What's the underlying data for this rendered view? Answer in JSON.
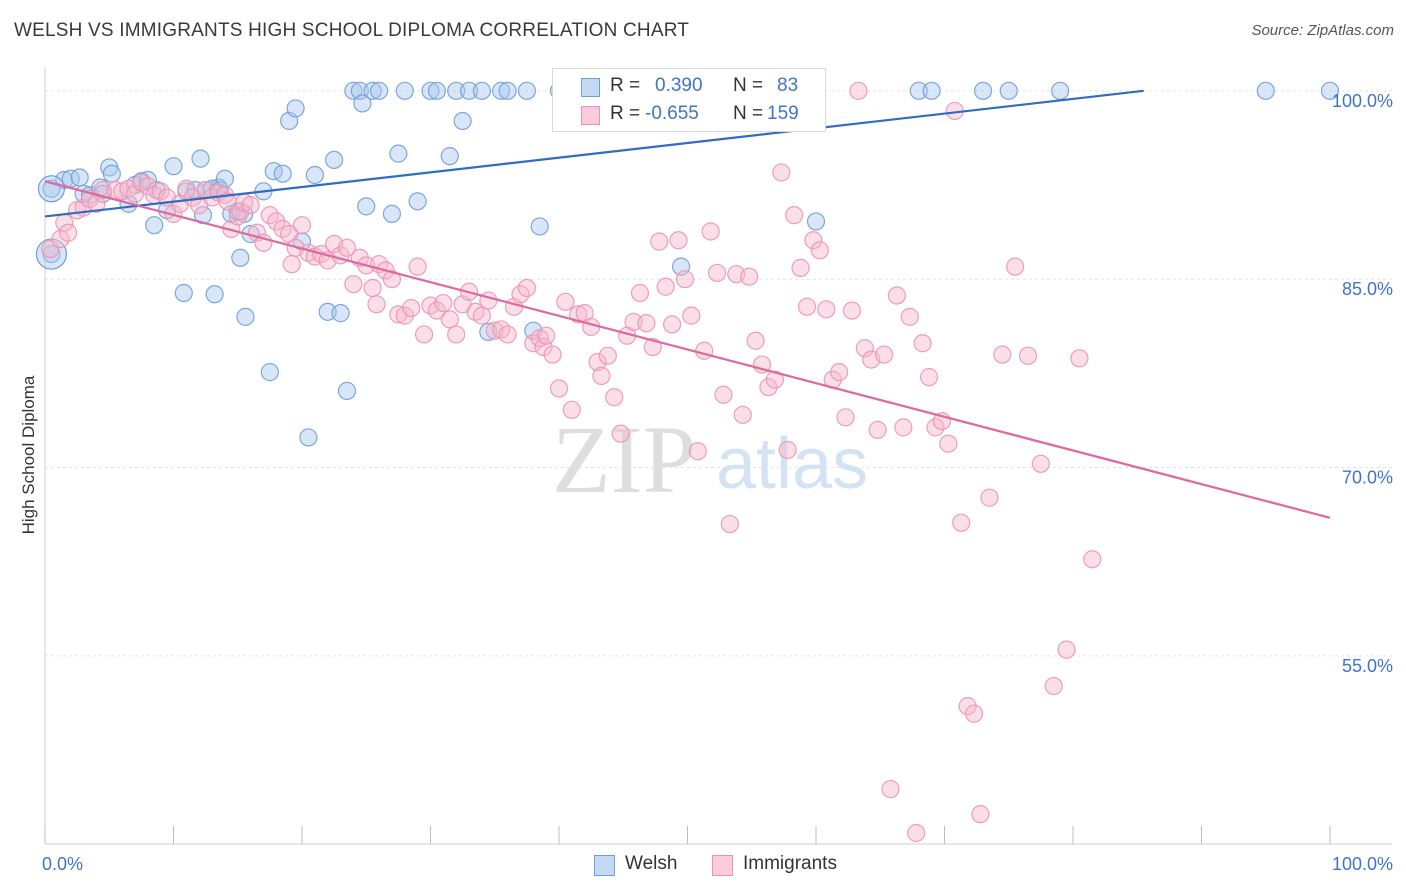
{
  "header": {
    "title": "WELSH VS IMMIGRANTS HIGH SCHOOL DIPLOMA CORRELATION CHART",
    "source": "Source: ZipAtlas.com"
  },
  "watermark": {
    "zip": "ZIP",
    "atlas": "atlas"
  },
  "legend_top": {
    "welsh": {
      "r_label": "R =",
      "r_value": "0.390",
      "n_label": "N =",
      "n_value": "83"
    },
    "immigrants": {
      "r_label": "R =",
      "r_value": "-0.655",
      "n_label": "N =",
      "n_value": "159"
    }
  },
  "legend_bottom": {
    "welsh": "Welsh",
    "immigrants": "Immigrants"
  },
  "colors": {
    "welsh_fill": "#a9c8ee",
    "welsh_stroke": "#6f9fd8",
    "welsh_line": "#2f6cc4",
    "immigrants_fill": "#f7b9cd",
    "immigrants_stroke": "#ec93b0",
    "immigrants_line": "#e0689a",
    "tick_text": "#3f74c9",
    "grid": "#e3e3e3"
  },
  "chart_data": {
    "type": "scatter",
    "title": "WELSH VS IMMIGRANTS HIGH SCHOOL DIPLOMA CORRELATION CHART",
    "xlabel": "",
    "ylabel": "High School Diploma",
    "xlim": [
      0,
      100
    ],
    "ylim": [
      40.5,
      101.5
    ],
    "x_tick_labels": [
      "0.0%",
      "100.0%"
    ],
    "y_ticks": [
      55,
      70,
      85,
      100
    ],
    "y_tick_labels": [
      "55.0%",
      "70.0%",
      "85.0%",
      "100.0%"
    ],
    "grid": true,
    "legend_position": "top-center",
    "series": [
      {
        "name": "Welsh",
        "r": 0.39,
        "n": 83,
        "trend": {
          "x": [
            0,
            85.5
          ],
          "y": [
            90.0,
            100.0
          ]
        },
        "points": [
          [
            0.5,
            92.2
          ],
          [
            0.5,
            87.0
          ],
          [
            1.5,
            92.9
          ],
          [
            2.0,
            93.0
          ],
          [
            2.7,
            93.1
          ],
          [
            3.0,
            91.8
          ],
          [
            3.5,
            91.7
          ],
          [
            4.3,
            92.3
          ],
          [
            4.5,
            91.8
          ],
          [
            5.0,
            93.9
          ],
          [
            5.2,
            93.4
          ],
          [
            6.5,
            91.0
          ],
          [
            7.0,
            92.5
          ],
          [
            7.5,
            92.8
          ],
          [
            8.0,
            92.9
          ],
          [
            8.5,
            89.3
          ],
          [
            8.7,
            92.1
          ],
          [
            9.5,
            90.5
          ],
          [
            10.0,
            94.0
          ],
          [
            11.0,
            92.0
          ],
          [
            10.8,
            83.9
          ],
          [
            11.7,
            92.1
          ],
          [
            12.1,
            94.6
          ],
          [
            12.3,
            90.1
          ],
          [
            12.5,
            92.1
          ],
          [
            13.0,
            92.2
          ],
          [
            13.2,
            83.8
          ],
          [
            13.5,
            92.3
          ],
          [
            13.6,
            92.1
          ],
          [
            14.0,
            93.0
          ],
          [
            14.5,
            90.2
          ],
          [
            15.0,
            90.4
          ],
          [
            15.2,
            86.7
          ],
          [
            15.5,
            90.2
          ],
          [
            15.6,
            82.0
          ],
          [
            16.0,
            88.6
          ],
          [
            17.0,
            92.0
          ],
          [
            17.5,
            77.6
          ],
          [
            17.8,
            93.6
          ],
          [
            18.5,
            93.4
          ],
          [
            19.0,
            97.6
          ],
          [
            19.5,
            98.6
          ],
          [
            20.0,
            88.0
          ],
          [
            20.5,
            72.4
          ],
          [
            21.0,
            93.3
          ],
          [
            22.0,
            82.4
          ],
          [
            22.5,
            94.5
          ],
          [
            23.0,
            82.3
          ],
          [
            23.5,
            76.1
          ],
          [
            24.0,
            100.0
          ],
          [
            24.5,
            100.0
          ],
          [
            24.7,
            99.0
          ],
          [
            25.0,
            90.8
          ],
          [
            25.5,
            100.0
          ],
          [
            26.0,
            100.0
          ],
          [
            27.0,
            90.2
          ],
          [
            27.5,
            95.0
          ],
          [
            28.0,
            100.0
          ],
          [
            29.0,
            91.2
          ],
          [
            30.0,
            100.0
          ],
          [
            30.5,
            100.0
          ],
          [
            31.5,
            94.8
          ],
          [
            32.0,
            100.0
          ],
          [
            32.5,
            97.6
          ],
          [
            33.0,
            100.0
          ],
          [
            34.0,
            100.0
          ],
          [
            34.5,
            80.8
          ],
          [
            35.5,
            100.0
          ],
          [
            36.0,
            100.0
          ],
          [
            37.5,
            100.0
          ],
          [
            38.0,
            80.9
          ],
          [
            38.5,
            89.2
          ],
          [
            40.0,
            100.0
          ],
          [
            42.0,
            100.0
          ],
          [
            47.5,
            100.0
          ],
          [
            49.5,
            86.0
          ],
          [
            54.5,
            100.0
          ],
          [
            60.0,
            89.6
          ],
          [
            68.0,
            100.0
          ],
          [
            69.0,
            100.0
          ],
          [
            73.0,
            100.0
          ],
          [
            75.0,
            100.0
          ],
          [
            79.0,
            100.0
          ],
          [
            95.0,
            100.0
          ],
          [
            100.0,
            100.0
          ]
        ]
      },
      {
        "name": "Immigrants",
        "r": -0.655,
        "n": 159,
        "trend": {
          "x": [
            0,
            100
          ],
          "y": [
            92.8,
            66.0
          ]
        },
        "points": [
          [
            0.4,
            87.4
          ],
          [
            1.2,
            88.2
          ],
          [
            1.5,
            89.5
          ],
          [
            1.8,
            88.7
          ],
          [
            2.5,
            90.5
          ],
          [
            3.0,
            90.7
          ],
          [
            3.5,
            91.4
          ],
          [
            4.0,
            91.0
          ],
          [
            4.5,
            92.1
          ],
          [
            5.5,
            92.1
          ],
          [
            6.0,
            92.0
          ],
          [
            6.5,
            92.2
          ],
          [
            7.0,
            91.8
          ],
          [
            7.5,
            92.7
          ],
          [
            8.0,
            92.4
          ],
          [
            8.5,
            91.7
          ],
          [
            9.0,
            92.0
          ],
          [
            9.5,
            91.5
          ],
          [
            10.0,
            90.2
          ],
          [
            10.5,
            91.0
          ],
          [
            11.0,
            92.2
          ],
          [
            11.5,
            91.5
          ],
          [
            12.0,
            90.9
          ],
          [
            12.5,
            92.1
          ],
          [
            13.0,
            91.5
          ],
          [
            13.5,
            91.9
          ],
          [
            14.0,
            91.7
          ],
          [
            14.2,
            91.2
          ],
          [
            14.5,
            89.0
          ],
          [
            15.0,
            90.0
          ],
          [
            15.2,
            90.4
          ],
          [
            15.5,
            91.1
          ],
          [
            16.0,
            90.9
          ],
          [
            16.5,
            88.7
          ],
          [
            17.0,
            87.9
          ],
          [
            17.5,
            90.1
          ],
          [
            18.0,
            89.6
          ],
          [
            18.5,
            89.0
          ],
          [
            19.0,
            88.6
          ],
          [
            19.2,
            86.2
          ],
          [
            19.5,
            87.5
          ],
          [
            20.0,
            89.3
          ],
          [
            20.5,
            87.1
          ],
          [
            21.0,
            86.8
          ],
          [
            21.5,
            87.0
          ],
          [
            22.0,
            86.5
          ],
          [
            22.5,
            87.8
          ],
          [
            23.0,
            86.9
          ],
          [
            23.5,
            87.5
          ],
          [
            24.0,
            84.6
          ],
          [
            24.5,
            86.7
          ],
          [
            25.0,
            86.1
          ],
          [
            25.5,
            84.3
          ],
          [
            25.8,
            83.0
          ],
          [
            26.0,
            86.2
          ],
          [
            26.5,
            85.7
          ],
          [
            27.0,
            85.0
          ],
          [
            27.5,
            82.2
          ],
          [
            28.0,
            82.1
          ],
          [
            28.5,
            82.7
          ],
          [
            29.0,
            86.0
          ],
          [
            29.5,
            80.6
          ],
          [
            30.0,
            82.9
          ],
          [
            30.5,
            82.5
          ],
          [
            31.0,
            83.1
          ],
          [
            31.5,
            81.8
          ],
          [
            32.0,
            80.6
          ],
          [
            32.5,
            83.0
          ],
          [
            33.0,
            84.0
          ],
          [
            33.5,
            82.4
          ],
          [
            34.0,
            82.1
          ],
          [
            34.5,
            83.3
          ],
          [
            35.0,
            80.9
          ],
          [
            35.5,
            81.0
          ],
          [
            36.0,
            80.6
          ],
          [
            36.5,
            82.8
          ],
          [
            37.0,
            83.8
          ],
          [
            37.5,
            84.3
          ],
          [
            38.0,
            79.9
          ],
          [
            38.5,
            80.3
          ],
          [
            38.8,
            79.6
          ],
          [
            39.0,
            80.5
          ],
          [
            39.5,
            79.0
          ],
          [
            40.0,
            76.3
          ],
          [
            40.5,
            83.2
          ],
          [
            41.0,
            74.6
          ],
          [
            41.5,
            82.2
          ],
          [
            42.0,
            82.3
          ],
          [
            42.5,
            81.2
          ],
          [
            43.0,
            78.4
          ],
          [
            43.3,
            77.3
          ],
          [
            43.8,
            78.9
          ],
          [
            44.3,
            75.6
          ],
          [
            44.8,
            72.7
          ],
          [
            45.3,
            80.5
          ],
          [
            45.8,
            81.6
          ],
          [
            46.3,
            83.9
          ],
          [
            46.8,
            81.5
          ],
          [
            47.3,
            79.6
          ],
          [
            47.8,
            88.0
          ],
          [
            48.3,
            84.4
          ],
          [
            48.8,
            81.4
          ],
          [
            49.3,
            88.1
          ],
          [
            49.8,
            85.0
          ],
          [
            50.3,
            82.1
          ],
          [
            50.8,
            71.3
          ],
          [
            51.3,
            79.3
          ],
          [
            51.8,
            88.8
          ],
          [
            52.3,
            85.5
          ],
          [
            52.8,
            75.8
          ],
          [
            53.3,
            65.5
          ],
          [
            53.8,
            85.4
          ],
          [
            54.3,
            74.2
          ],
          [
            54.8,
            85.2
          ],
          [
            55.3,
            80.1
          ],
          [
            55.8,
            78.2
          ],
          [
            56.3,
            76.4
          ],
          [
            56.8,
            77.0
          ],
          [
            57.3,
            93.5
          ],
          [
            57.8,
            71.4
          ],
          [
            58.3,
            90.1
          ],
          [
            58.8,
            85.9
          ],
          [
            59.3,
            82.8
          ],
          [
            59.8,
            88.1
          ],
          [
            60.3,
            87.3
          ],
          [
            60.8,
            82.6
          ],
          [
            61.3,
            77.0
          ],
          [
            61.8,
            77.6
          ],
          [
            62.3,
            74.0
          ],
          [
            62.8,
            82.5
          ],
          [
            63.3,
            100.0
          ],
          [
            63.8,
            79.5
          ],
          [
            64.3,
            78.6
          ],
          [
            64.8,
            73.0
          ],
          [
            65.3,
            79.0
          ],
          [
            65.8,
            44.4
          ],
          [
            66.3,
            83.7
          ],
          [
            66.8,
            73.2
          ],
          [
            67.3,
            82.0
          ],
          [
            67.8,
            40.9
          ],
          [
            68.3,
            79.9
          ],
          [
            68.8,
            77.2
          ],
          [
            69.3,
            73.2
          ],
          [
            69.8,
            73.7
          ],
          [
            70.3,
            71.9
          ],
          [
            70.8,
            98.4
          ],
          [
            71.3,
            65.6
          ],
          [
            71.8,
            51.0
          ],
          [
            72.3,
            50.4
          ],
          [
            72.8,
            42.4
          ],
          [
            73.5,
            67.6
          ],
          [
            74.5,
            79.0
          ],
          [
            75.5,
            86.0
          ],
          [
            76.5,
            78.9
          ],
          [
            77.5,
            70.3
          ],
          [
            78.5,
            52.6
          ],
          [
            79.5,
            55.5
          ],
          [
            80.5,
            78.7
          ],
          [
            81.5,
            62.7
          ]
        ]
      }
    ]
  }
}
